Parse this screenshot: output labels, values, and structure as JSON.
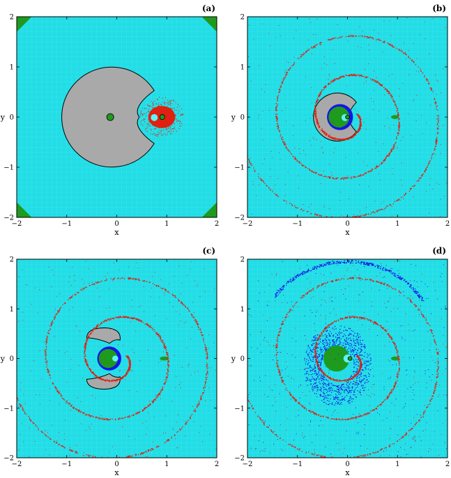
{
  "colors": {
    "background": "#22dde6",
    "gray": "#a9a9a9",
    "green": "#1e9a1e",
    "red": "#e02010",
    "blue": "#1414e6",
    "cyan_light": "#5ff2f6"
  },
  "chart_data": [
    {
      "type": "heatmap",
      "panel_label": "(a)",
      "xlabel": "x",
      "ylabel": "y",
      "xlim": [
        -2,
        2
      ],
      "ylim": [
        -2,
        2
      ],
      "xticks": [
        -2,
        -1,
        0,
        1,
        2
      ],
      "yticks": [
        -2,
        -1,
        0,
        1,
        2
      ],
      "xtick_labels": [
        "−2",
        "−1",
        "0",
        "1",
        "2"
      ],
      "ytick_labels": [
        "−2",
        "−1",
        "0",
        "1",
        "2"
      ],
      "regions": [
        {
          "kind": "gray-pacman",
          "center": [
            -0.1,
            0
          ],
          "radius": 1.0,
          "mouth_half_angle_deg": 32
        },
        {
          "kind": "green-disk",
          "center": [
            -0.13,
            0
          ],
          "radius": 0.07
        },
        {
          "kind": "red-blob",
          "center": [
            0.9,
            0.0
          ],
          "rx": 0.27,
          "ry": 0.22
        },
        {
          "kind": "cyan-disk",
          "center": [
            0.75,
            -0.01
          ],
          "radius": 0.07
        },
        {
          "kind": "green-disk",
          "center": [
            0.91,
            0.0
          ],
          "radius": 0.05
        },
        {
          "kind": "green-corners",
          "size": 0.3
        }
      ]
    },
    {
      "type": "heatmap",
      "panel_label": "(b)",
      "xlabel": "x",
      "ylabel": "y",
      "xlim": [
        -2,
        2
      ],
      "ylim": [
        -2,
        2
      ],
      "xticks": [
        -2,
        -1,
        0,
        1,
        2
      ],
      "yticks": [
        -2,
        -1,
        0,
        1,
        2
      ],
      "xtick_labels": [
        "−2",
        "−1",
        "0",
        "1",
        "2"
      ],
      "ytick_labels": [
        "−2",
        "−1",
        "0",
        "1",
        "2"
      ],
      "regions": [
        {
          "kind": "gray-pacman",
          "center": [
            -0.2,
            0
          ],
          "radius": 0.48,
          "mouth_half_angle_deg": 38
        },
        {
          "kind": "blue-disk",
          "center": [
            -0.15,
            0
          ],
          "radius": 0.26
        },
        {
          "kind": "green-disk",
          "center": [
            -0.17,
            0
          ],
          "radius": 0.21
        },
        {
          "kind": "cyan-disk",
          "center": [
            -0.05,
            -0.01
          ],
          "radius": 0.07
        },
        {
          "kind": "green-disk",
          "center": [
            0.0,
            0.0
          ],
          "radius": 0.04
        },
        {
          "kind": "green-lens",
          "center": [
            0.95,
            0.0
          ],
          "rx": 0.08,
          "ry": 0.04
        },
        {
          "kind": "red-spiral",
          "turns": 2.6
        }
      ]
    },
    {
      "type": "heatmap",
      "panel_label": "(c)",
      "xlabel": "x",
      "ylabel": "y",
      "xlim": [
        -2,
        2
      ],
      "ylim": [
        -2,
        2
      ],
      "xticks": [
        -2,
        -1,
        0,
        1,
        2
      ],
      "yticks": [
        -2,
        -1,
        0,
        1,
        2
      ],
      "xtick_labels": [
        "−2",
        "−1",
        "0",
        "1",
        "2"
      ],
      "ytick_labels": [
        "−2",
        "−1",
        "0",
        "1",
        "2"
      ],
      "regions": [
        {
          "kind": "gray-crescent-upper",
          "center": [
            -0.25,
            0.45
          ]
        },
        {
          "kind": "gray-crescent-lower",
          "center": [
            -0.25,
            -0.45
          ]
        },
        {
          "kind": "blue-disk",
          "center": [
            -0.15,
            0
          ],
          "radius": 0.24
        },
        {
          "kind": "green-disk",
          "center": [
            -0.17,
            0
          ],
          "radius": 0.19
        },
        {
          "kind": "cyan-disk",
          "center": [
            -0.03,
            0.0
          ],
          "radius": 0.06
        },
        {
          "kind": "green-lens",
          "center": [
            0.95,
            0.0
          ],
          "rx": 0.09,
          "ry": 0.04
        },
        {
          "kind": "red-spiral",
          "turns": 2.6
        }
      ]
    },
    {
      "type": "heatmap",
      "panel_label": "(d)",
      "xlabel": "x",
      "ylabel": "y",
      "xlim": [
        -2,
        2
      ],
      "ylim": [
        -2,
        2
      ],
      "xticks": [
        -2,
        -1,
        0,
        1,
        2
      ],
      "yticks": [
        -2,
        -1,
        0,
        1,
        2
      ],
      "xtick_labels": [
        "−2",
        "−1",
        "0",
        "1",
        "2"
      ],
      "ytick_labels": [
        "−2",
        "−1",
        "0",
        "1",
        "2"
      ],
      "regions": [
        {
          "kind": "blue-swirl",
          "center": [
            -0.2,
            -0.2
          ]
        },
        {
          "kind": "green-disk",
          "center": [
            -0.22,
            0
          ],
          "radius": 0.26
        },
        {
          "kind": "cyan-disk",
          "center": [
            0.0,
            0.0
          ],
          "radius": 0.08
        },
        {
          "kind": "green-disk",
          "center": [
            0.05,
            0.0
          ],
          "radius": 0.04
        },
        {
          "kind": "green-lens",
          "center": [
            0.95,
            0.0
          ],
          "rx": 0.08,
          "ry": 0.04
        },
        {
          "kind": "red-spiral",
          "turns": 2.6
        },
        {
          "kind": "blue-arcs"
        }
      ]
    }
  ]
}
